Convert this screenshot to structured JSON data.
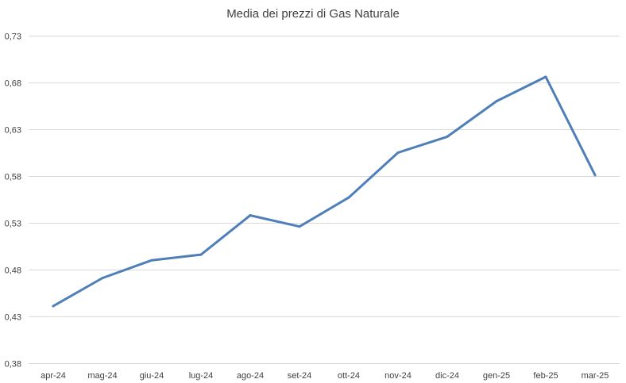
{
  "chart_data": {
    "type": "line",
    "title": "Media dei prezzi di Gas Naturale",
    "categories": [
      "apr-24",
      "mag-24",
      "giu-24",
      "lug-24",
      "ago-24",
      "set-24",
      "ott-24",
      "nov-24",
      "dic-24",
      "gen-25",
      "feb-25",
      "mar-25"
    ],
    "y_tick_labels": [
      "0,38",
      "0,43",
      "0,48",
      "0,53",
      "0,58",
      "0,63",
      "0,68",
      "0,73"
    ],
    "y_ticks": [
      0.38,
      0.43,
      0.48,
      0.53,
      0.58,
      0.63,
      0.68,
      0.73
    ],
    "ylim": [
      0.38,
      0.73
    ],
    "series": [
      {
        "values": [
          0.441,
          0.471,
          0.49,
          0.496,
          0.538,
          0.526,
          0.557,
          0.605,
          0.622,
          0.66,
          0.686,
          0.581
        ]
      }
    ],
    "grid": true,
    "line_color": "#4f7fb8",
    "xlabel": "",
    "ylabel": ""
  }
}
